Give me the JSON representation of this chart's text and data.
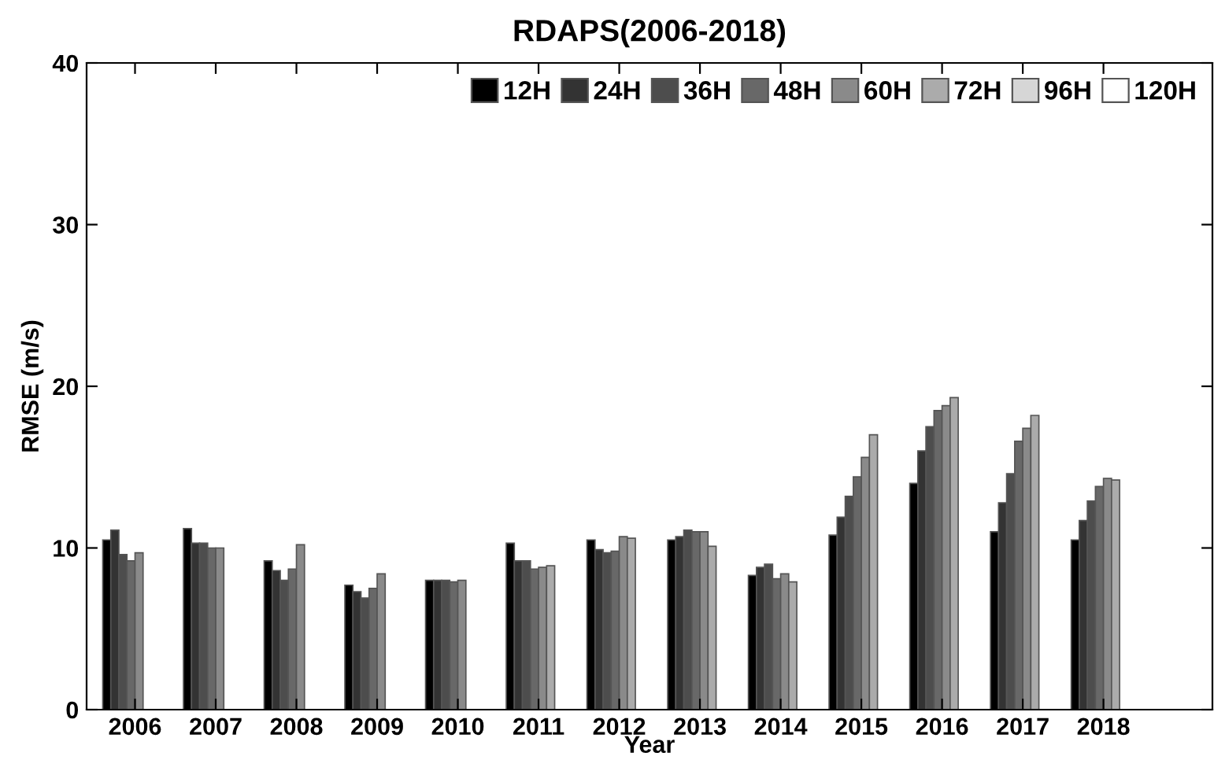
{
  "chart_data": {
    "type": "bar",
    "title": "RDAPS(2006-2018)",
    "xlabel": "Year",
    "ylabel": "RMSE (m/s)",
    "categories": [
      "2006",
      "2007",
      "2008",
      "2009",
      "2010",
      "2011",
      "2012",
      "2013",
      "2014",
      "2015",
      "2016",
      "2017",
      "2018"
    ],
    "series": [
      {
        "name": "12H",
        "color": "#000000",
        "values": [
          10.5,
          11.2,
          9.2,
          7.7,
          8.0,
          10.3,
          10.5,
          10.5,
          8.3,
          10.8,
          14.0,
          11.0,
          10.5
        ]
      },
      {
        "name": "24H",
        "color": "#333333",
        "values": [
          11.1,
          10.3,
          8.6,
          7.3,
          8.0,
          9.2,
          9.9,
          10.7,
          8.8,
          11.9,
          16.0,
          12.8,
          11.7
        ]
      },
      {
        "name": "36H",
        "color": "#4d4d4d",
        "values": [
          9.6,
          10.3,
          8.0,
          6.9,
          8.0,
          9.2,
          9.7,
          11.1,
          9.0,
          13.2,
          17.5,
          14.6,
          12.9
        ]
      },
      {
        "name": "48H",
        "color": "#686868",
        "values": [
          9.2,
          10.0,
          8.7,
          7.5,
          7.9,
          8.7,
          9.8,
          11.0,
          8.1,
          14.4,
          18.5,
          16.6,
          13.8
        ]
      },
      {
        "name": "60H",
        "color": "#8a8a8a",
        "values": [
          9.7,
          10.0,
          10.2,
          8.4,
          8.0,
          8.8,
          10.7,
          11.0,
          8.4,
          15.6,
          18.8,
          17.4,
          14.3
        ]
      },
      {
        "name": "72H",
        "color": "#ababab",
        "values": [
          null,
          null,
          null,
          null,
          null,
          8.9,
          10.6,
          10.1,
          7.9,
          17.0,
          19.3,
          18.2,
          14.2
        ]
      },
      {
        "name": "96H",
        "color": "#d6d6d6",
        "values": [
          null,
          null,
          null,
          null,
          null,
          null,
          null,
          null,
          null,
          null,
          null,
          null,
          null
        ]
      },
      {
        "name": "120H",
        "color": "#ffffff",
        "values": [
          null,
          null,
          null,
          null,
          null,
          null,
          null,
          null,
          null,
          null,
          null,
          null,
          null
        ]
      }
    ],
    "ylim": [
      0,
      40
    ],
    "yticks": [
      0,
      10,
      20,
      30,
      40
    ],
    "grid": false,
    "legend": "top right"
  }
}
